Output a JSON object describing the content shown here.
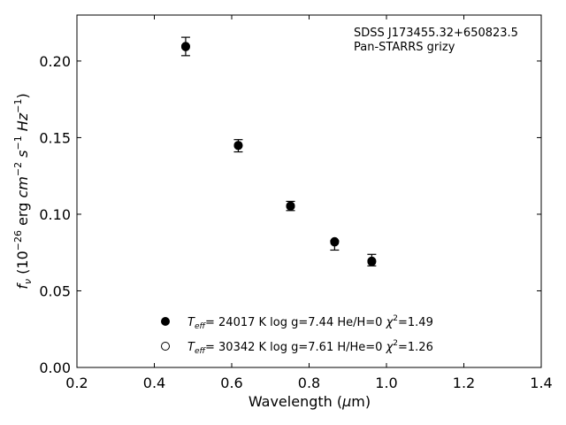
{
  "chart_data": {
    "type": "scatter",
    "xlabel": {
      "prefix": "Wavelength (",
      "mu": "μ",
      "suffix": "m)"
    },
    "ylabel": {
      "f": "f",
      "nu": "ν",
      "open": " (10",
      "exp26": "−26",
      "erg": " erg ",
      "cm": "cm",
      "exp2": "−2",
      "s": " s",
      "exp1a": "−1",
      "hz": " Hz",
      "exp1b": "−1",
      "close": ")"
    },
    "xlim": [
      0.2,
      1.4
    ],
    "ylim": [
      0.0,
      0.23
    ],
    "xticks": [
      "0.2",
      "0.4",
      "0.6",
      "0.8",
      "1.0",
      "1.2",
      "1.4"
    ],
    "xtick_values": [
      0.2,
      0.4,
      0.6,
      0.8,
      1.0,
      1.2,
      1.4
    ],
    "yticks": [
      "0.00",
      "0.05",
      "0.10",
      "0.15",
      "0.20"
    ],
    "ytick_values": [
      0.0,
      0.05,
      0.1,
      0.15,
      0.2
    ],
    "grid": false,
    "annotation": [
      "SDSS J173455.32+650823.5",
      "Pan-STARRS grizy"
    ],
    "observed": {
      "x": [
        0.481,
        0.617,
        0.752,
        0.866,
        0.962
      ],
      "y": [
        0.2095,
        0.1447,
        0.1054,
        0.0816,
        0.0703
      ],
      "yerr_low": [
        0.006,
        0.004,
        0.003,
        0.005,
        0.004
      ],
      "yerr_high": [
        0.006,
        0.004,
        0.003,
        0.001,
        0.0035
      ]
    },
    "series": [
      {
        "marker": "filled",
        "x": [
          0.481,
          0.617,
          0.752,
          0.866,
          0.962
        ],
        "y": [
          0.2093,
          0.145,
          0.1052,
          0.0822,
          0.069
        ],
        "label": {
          "t": "T",
          "eff": "eff",
          "rest": "= 24017 K  log g=7.44  He/H=0  ",
          "chi": "χ",
          "two": "2",
          "val": "=1.49"
        }
      },
      {
        "marker": "open",
        "x": [
          0.481,
          0.617,
          0.752,
          0.866,
          0.962
        ],
        "y": [
          0.2096,
          0.1448,
          0.1055,
          0.0818,
          0.0695
        ],
        "label": {
          "t": "T",
          "eff": "eff",
          "rest": "= 30342 K  log g=7.61  H/He=0  ",
          "chi": "χ",
          "two": "2",
          "val": "=1.26"
        }
      }
    ],
    "legend_location": "lower-center"
  }
}
